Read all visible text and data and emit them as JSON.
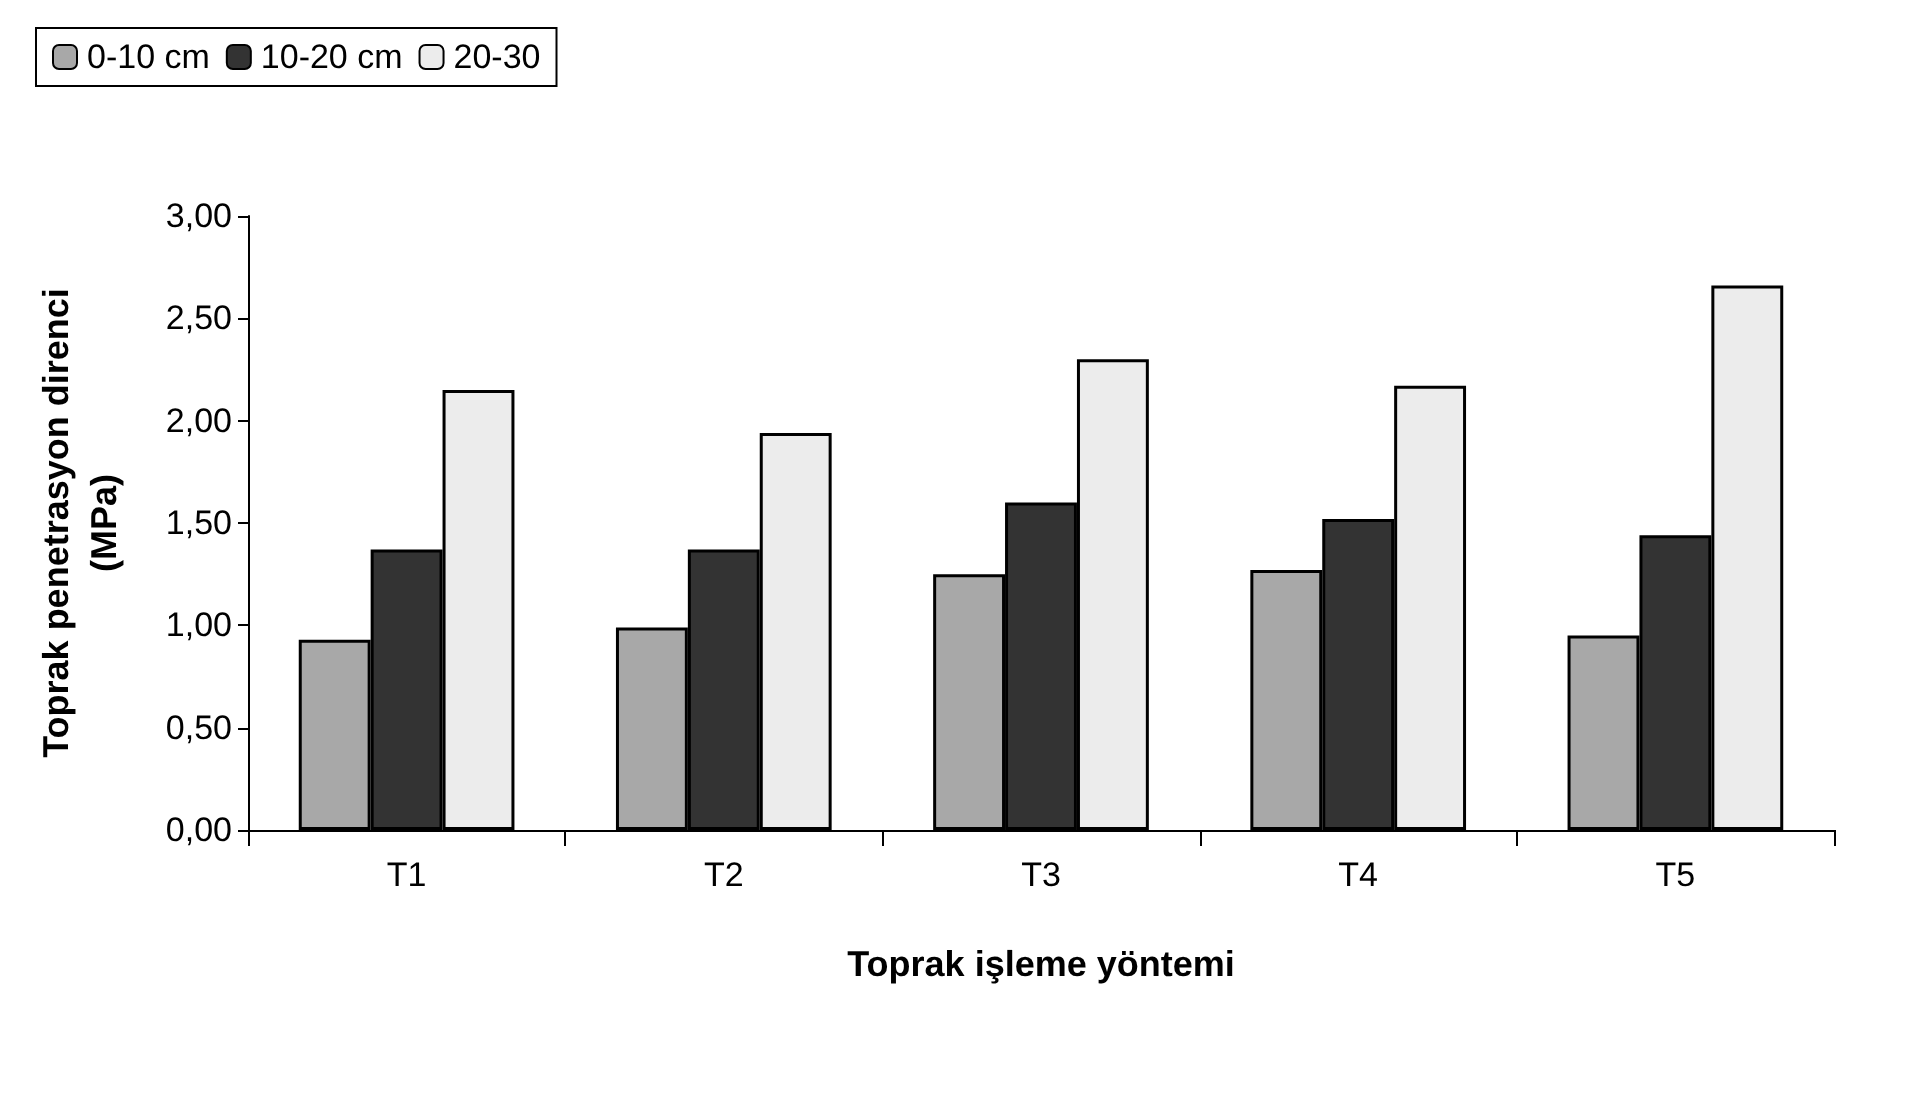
{
  "chart_data": {
    "type": "bar",
    "xlabel": "Toprak işleme yöntemi",
    "ylabel": "Toprak penetrasyon direnci\n(MPa)",
    "categories": [
      "T1",
      "T2",
      "T3",
      "T4",
      "T5"
    ],
    "series": [
      {
        "name": "0-10 cm",
        "color": "#a8a8a8",
        "values": [
          0.93,
          0.99,
          1.25,
          1.27,
          0.95
        ]
      },
      {
        "name": "10-20 cm",
        "color": "#333333",
        "values": [
          1.37,
          1.37,
          1.6,
          1.52,
          1.44
        ]
      },
      {
        "name": "20-30",
        "color": "#ececec",
        "values": [
          2.15,
          1.94,
          2.3,
          2.17,
          2.66
        ]
      }
    ],
    "ylim": [
      0,
      3
    ],
    "yticks": [
      {
        "value": 0,
        "label": "0,00"
      },
      {
        "value": 0.5,
        "label": "0,50"
      },
      {
        "value": 1,
        "label": "1,00"
      },
      {
        "value": 1.5,
        "label": "1,50"
      },
      {
        "value": 2,
        "label": "2,00"
      },
      {
        "value": 2.5,
        "label": "2,50"
      },
      {
        "value": 3,
        "label": "3,00"
      }
    ],
    "grid": false,
    "legend": "top left"
  }
}
